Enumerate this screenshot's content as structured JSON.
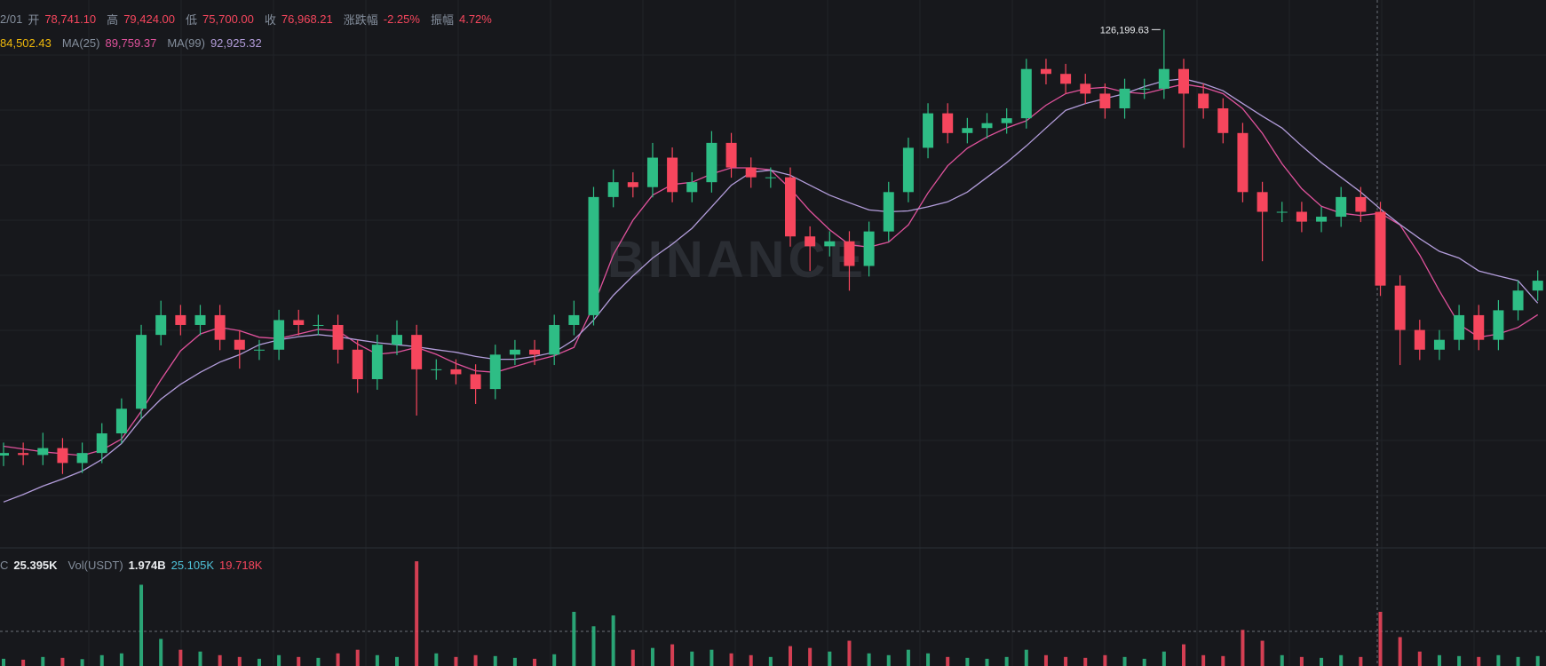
{
  "header": {
    "date": "2/01",
    "open_label": "开",
    "open": "78,741.10",
    "high_label": "高",
    "high": "79,424.00",
    "low_label": "低",
    "low": "75,700.00",
    "close_label": "收",
    "close": "76,968.21",
    "change_label": "涨跌幅",
    "change": "-2.25%",
    "amplitude_label": "振幅",
    "amplitude": "4.72%"
  },
  "ma_legend": {
    "ma7": "84,502.43",
    "ma25": "89,759.37",
    "ma99": "92,925.32"
  },
  "volume_legend": {
    "label": "C",
    "vol": "25.395K",
    "usdt_label": "Vol(USDT)",
    "usdt": "1.974B",
    "ma1": "25.105K",
    "ma2": "19.718K"
  },
  "watermark": "BINANCE",
  "chart_data": {
    "type": "candlestick",
    "log_scale": true,
    "ylim": [
      27500,
      137700
    ],
    "up_color": "#2ebd85",
    "down_color": "#f6465d",
    "open": [
      36000,
      36270,
      36060,
      36800,
      35220,
      36270,
      38430,
      41320,
      51360,
      54430,
      52880,
      54430,
      50620,
      49170,
      49170,
      53650,
      52880,
      52880,
      49170,
      45080,
      49900,
      51360,
      46410,
      46410,
      45740,
      43790,
      48460,
      49170,
      48460,
      52880,
      54430,
      77080,
      80520,
      79360,
      86560,
      78210,
      80520,
      90410,
      84090,
      81690,
      81690,
      68640,
      66670,
      67660,
      62920,
      69650,
      78210,
      89110,
      98630,
      93070,
      94440,
      95810,
      97210,
      112380,
      110770,
      107600,
      104520,
      100080,
      106050,
      106050,
      112380,
      104520,
      100080,
      93070,
      78210,
      73800,
      73800,
      71690,
      72740,
      77080,
      73800,
      59380,
      52110,
      49170,
      50620,
      54430,
      50620,
      55220,
      58520
    ],
    "high": [
      37400,
      37400,
      38500,
      37900,
      37400,
      39600,
      42600,
      52900,
      56800,
      56100,
      56100,
      56100,
      52100,
      50600,
      55300,
      55300,
      54500,
      54500,
      50600,
      51400,
      53600,
      52900,
      47800,
      47800,
      47100,
      49900,
      50600,
      50600,
      54500,
      56800,
      79400,
      83600,
      82900,
      90400,
      89200,
      82900,
      93600,
      93100,
      86600,
      84100,
      84100,
      70700,
      69700,
      69700,
      71700,
      80600,
      91800,
      101600,
      101600,
      97300,
      98700,
      100100,
      115800,
      115800,
      114100,
      110800,
      107700,
      109200,
      109200,
      126199.63,
      115800,
      107700,
      103100,
      95900,
      80600,
      76000,
      76000,
      74900,
      79400,
      79400,
      76000,
      61200,
      53700,
      52100,
      56100,
      56100,
      56900,
      60300,
      62100
    ],
    "low": [
      34900,
      35000,
      35000,
      34100,
      34200,
      35200,
      37300,
      40100,
      49800,
      51300,
      51300,
      49100,
      46500,
      47700,
      47700,
      51300,
      51300,
      47200,
      43300,
      43700,
      48400,
      40500,
      45000,
      44400,
      41900,
      42500,
      47000,
      47000,
      47000,
      51300,
      52800,
      74800,
      77000,
      77000,
      75900,
      75900,
      78100,
      81600,
      79200,
      79200,
      66600,
      62000,
      64700,
      58500,
      61000,
      67600,
      75900,
      86400,
      90300,
      90300,
      91600,
      92900,
      94300,
      107400,
      104400,
      101400,
      97100,
      97100,
      102900,
      102900,
      89100,
      97100,
      90300,
      75900,
      63800,
      71600,
      69500,
      69500,
      70600,
      71600,
      57600,
      47000,
      47700,
      47700,
      49100,
      49100,
      49100,
      53600,
      56800
    ],
    "close": [
      36270,
      36060,
      36800,
      35220,
      36270,
      38430,
      41320,
      51360,
      54430,
      52880,
      54430,
      50620,
      49170,
      49170,
      53650,
      52880,
      52880,
      49170,
      45080,
      49900,
      51360,
      46410,
      46410,
      45740,
      43790,
      48460,
      49170,
      48460,
      52880,
      54430,
      77080,
      80520,
      79360,
      86560,
      78210,
      80520,
      90410,
      84090,
      81690,
      81690,
      68640,
      66670,
      67660,
      62920,
      69650,
      78210,
      89110,
      98630,
      93070,
      94440,
      95810,
      97210,
      112380,
      110770,
      107600,
      104520,
      100080,
      106050,
      106050,
      112380,
      104520,
      100080,
      93070,
      78210,
      73800,
      73800,
      71690,
      72740,
      77080,
      73800,
      59380,
      52110,
      49170,
      50620,
      54430,
      50620,
      55220,
      58520,
      60250
    ],
    "series": [
      {
        "name": "MA(25)",
        "color": "#e0529c",
        "values": [
          37000,
          36700,
          36400,
          36200,
          36000,
          36600,
          37800,
          41000,
          45000,
          49000,
          51500,
          52500,
          52000,
          51000,
          50800,
          51500,
          52200,
          52000,
          50000,
          48500,
          48800,
          49500,
          48500,
          47200,
          46200,
          46000,
          46800,
          47600,
          48300,
          49500,
          56000,
          65000,
          72000,
          77500,
          80000,
          80500,
          82500,
          84000,
          84000,
          83500,
          79000,
          74000,
          70000,
          67000,
          66500,
          67500,
          71000,
          78000,
          84500,
          89000,
          92000,
          94500,
          96500,
          101000,
          104500,
          106000,
          106500,
          105000,
          104500,
          106000,
          107500,
          106500,
          104500,
          100000,
          93000,
          85000,
          79000,
          75000,
          73500,
          73000,
          73500,
          71000,
          65000,
          58500,
          53000,
          51000,
          51500,
          52500,
          54500
        ]
      },
      {
        "name": "MA(99)",
        "color": "#b39ddb",
        "values": [
          31400,
          32100,
          32900,
          33600,
          34400,
          35600,
          37300,
          40100,
          42500,
          44400,
          46000,
          47400,
          48460,
          49900,
          50620,
          51100,
          51400,
          51100,
          50620,
          50200,
          49900,
          49600,
          49170,
          48800,
          48200,
          47800,
          47800,
          48200,
          48800,
          50620,
          53650,
          57700,
          61100,
          64400,
          67100,
          70300,
          74900,
          79800,
          82900,
          83400,
          82200,
          79800,
          77500,
          75800,
          74200,
          73800,
          74000,
          74900,
          76000,
          78210,
          81690,
          85300,
          89600,
          94440,
          99500,
          101500,
          103000,
          104500,
          106700,
          108500,
          109200,
          107600,
          105400,
          101500,
          97800,
          94440,
          89600,
          85300,
          81690,
          78210,
          74400,
          71100,
          68200,
          65700,
          64400,
          62000,
          61100,
          60250,
          56400
        ]
      }
    ],
    "max_marker": {
      "value": 126199.63,
      "label": "126,199.63"
    },
    "volume": {
      "ylim": [
        0,
        60000
      ],
      "values": [
        4000,
        3500,
        5000,
        4500,
        3800,
        6000,
        7000,
        45000,
        15000,
        9000,
        8000,
        6000,
        5000,
        4000,
        6000,
        5000,
        4500,
        7000,
        9000,
        6000,
        5000,
        58000,
        7000,
        5000,
        6000,
        5500,
        4500,
        4000,
        6500,
        30000,
        22000,
        28000,
        9000,
        10000,
        12000,
        8000,
        9000,
        7000,
        6000,
        5000,
        11000,
        10000,
        8000,
        14000,
        7000,
        6000,
        9000,
        7000,
        5000,
        4500,
        4000,
        5000,
        9000,
        6000,
        5000,
        4500,
        6000,
        5000,
        4000,
        8000,
        12000,
        6000,
        5500,
        20000,
        14000,
        6000,
        5000,
        4500,
        6000,
        5000,
        30000,
        16000,
        8000,
        6000,
        5500,
        5000,
        6000,
        5000,
        5500
      ]
    }
  }
}
